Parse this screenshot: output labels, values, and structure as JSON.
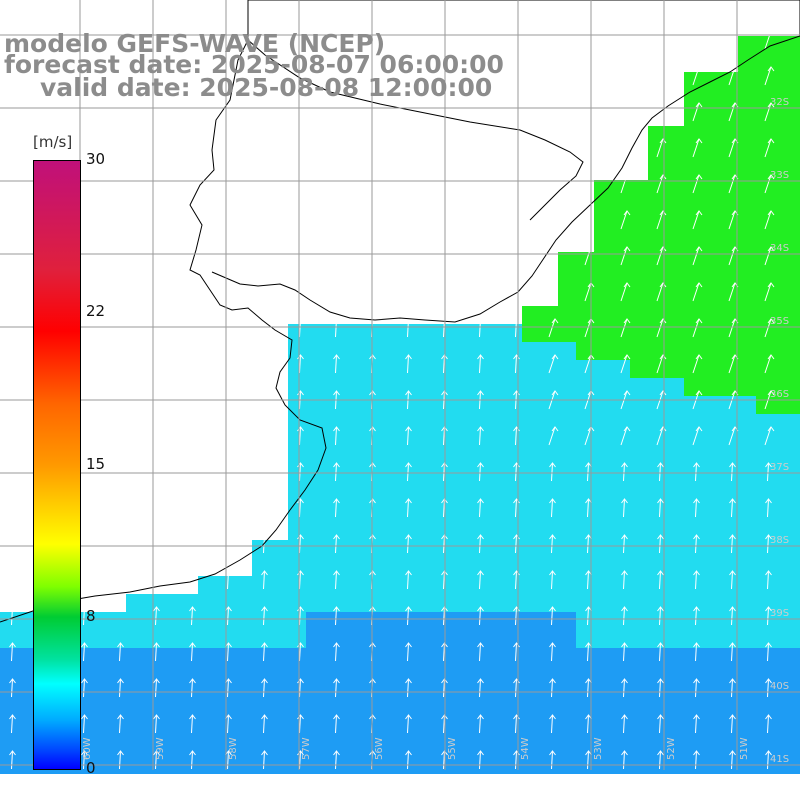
{
  "title": {
    "line1": "modelo GEFS-WAVE (NCEP)",
    "line2": "forecast date: 2025-08-07 06:00:00",
    "line3": "valid date: 2025-08-08 12:00:00"
  },
  "colorbar": {
    "unit": "[m/s]",
    "ticks": [
      "30",
      "22",
      "15",
      "8",
      "0"
    ],
    "min": 0,
    "max": 30,
    "colors": [
      "#0000ff",
      "#00aaff",
      "#00ffff",
      "#00e2a0",
      "#00cc33",
      "#7fff00",
      "#ffff00",
      "#ff9900",
      "#ff6600",
      "#ff0000",
      "#e0203c",
      "#c0107a"
    ]
  },
  "map": {
    "lat_labels": [
      "32S",
      "33S",
      "34S",
      "35S",
      "36S",
      "37S",
      "38S",
      "39S",
      "40S",
      "41S"
    ],
    "lon_labels": [
      "60W",
      "59W",
      "58W",
      "57W",
      "56W",
      "55W",
      "54W",
      "53W",
      "52W",
      "51W"
    ],
    "land_color": "#ffffff",
    "grid_color": "#9a9a9a",
    "coast_color": "#000000",
    "wind_field_note_colors": {
      "weak": "#1e9cf4",
      "moderate": "#22dcf0",
      "strong": "#22ee22"
    }
  }
}
